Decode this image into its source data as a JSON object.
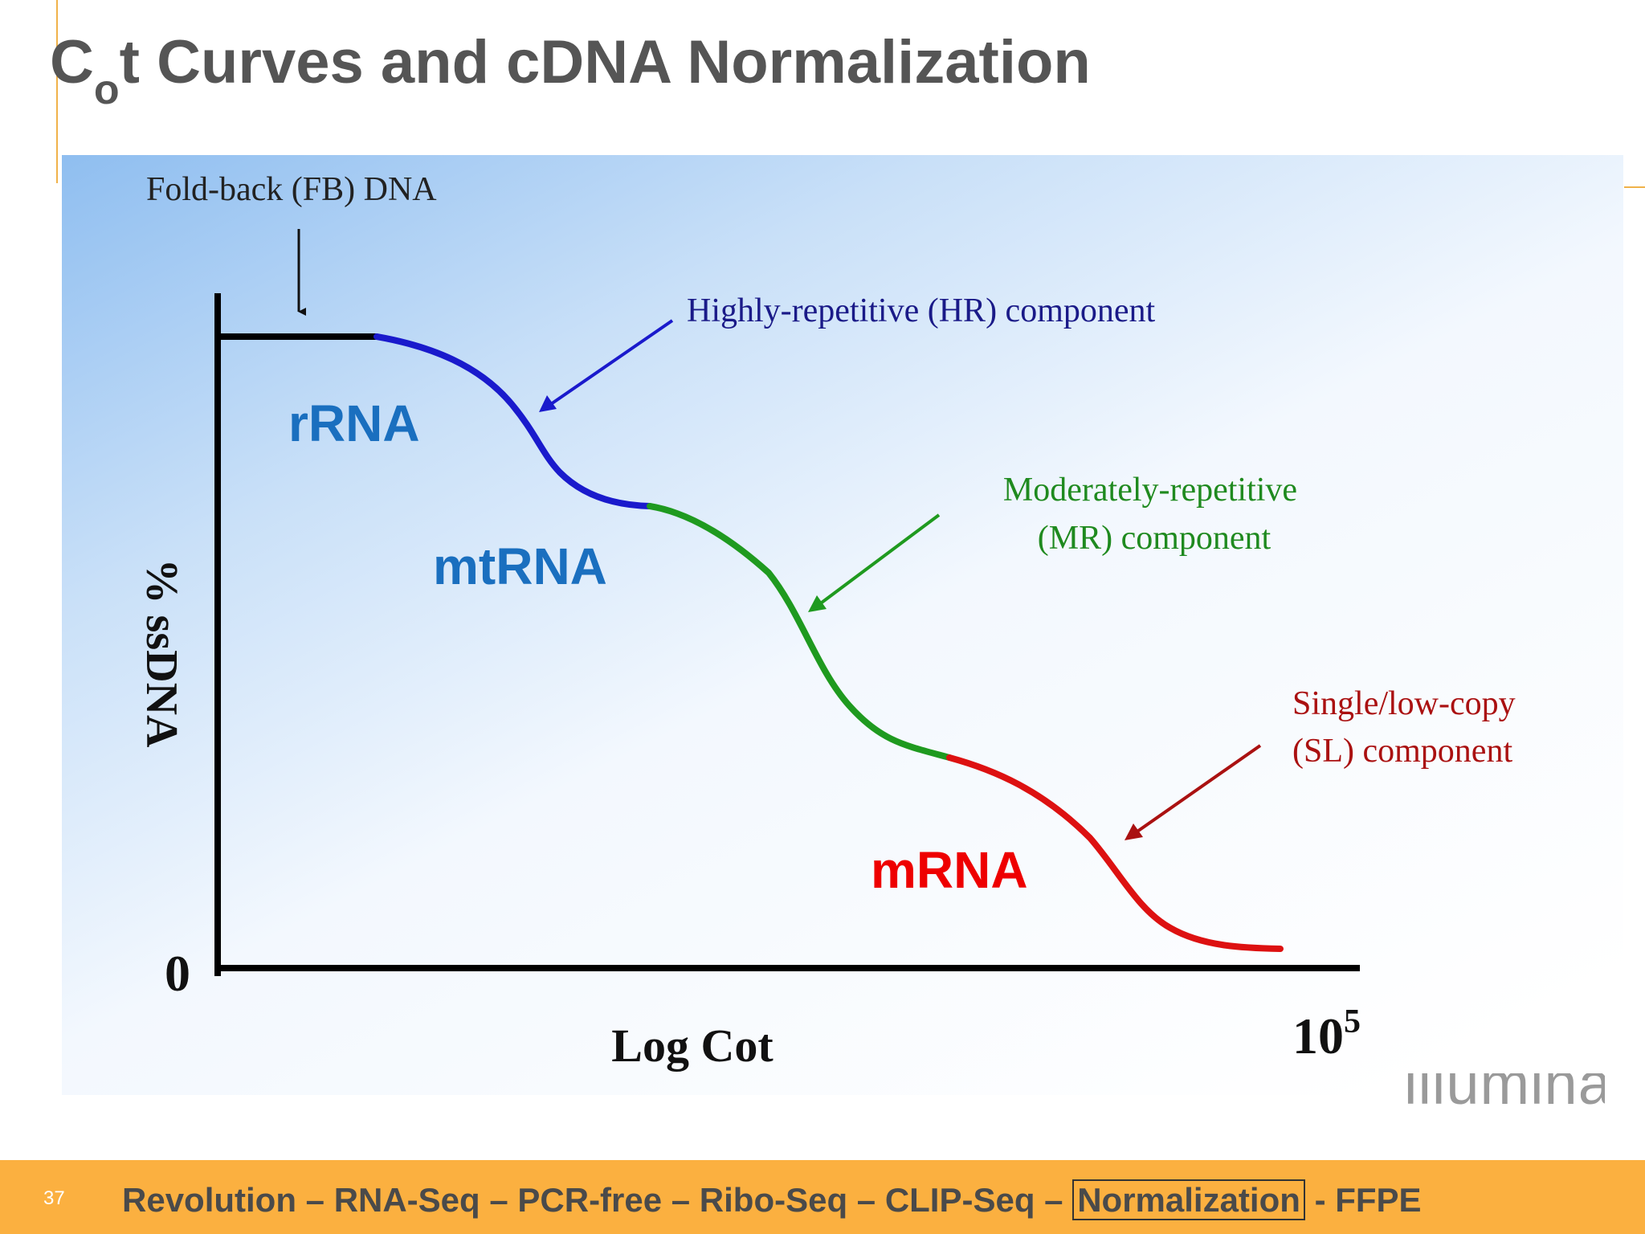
{
  "slide": {
    "title_main": "C",
    "title_subscript": "o",
    "title_rest": "t Curves and cDNA Normalization",
    "page_number": "37",
    "logo_text": "illumina"
  },
  "diagram": {
    "fold_back_label": "Fold-back (FB) DNA",
    "hr_label": "Highly-repetitive (HR) component",
    "mr_label_line1": "Moderately-repetitive",
    "mr_label_line2": "(MR) component",
    "sl_label_line1": "Single/low-copy",
    "sl_label_line2": "(SL) component",
    "rrna_label": "rRNA",
    "mtrna_label": "mtRNA",
    "mrna_label": "mRNA",
    "y_axis_label": "% ssDNA",
    "y_zero_label": "0",
    "x_axis_label": "Log Cot",
    "x_end_base": "10",
    "x_end_exponent": "5",
    "colors": {
      "hr": "#1a1acc",
      "mr": "#1f9a1f",
      "sl": "#dd1111",
      "rna_blue": "#1a6fbf",
      "mrna_red": "#ee0000"
    }
  },
  "footer": {
    "nav_before": "Revolution – RNA-Seq – PCR-free – Ribo-Seq – CLIP-Seq –",
    "nav_current": "Normalization",
    "nav_after": "- FFPE"
  }
}
